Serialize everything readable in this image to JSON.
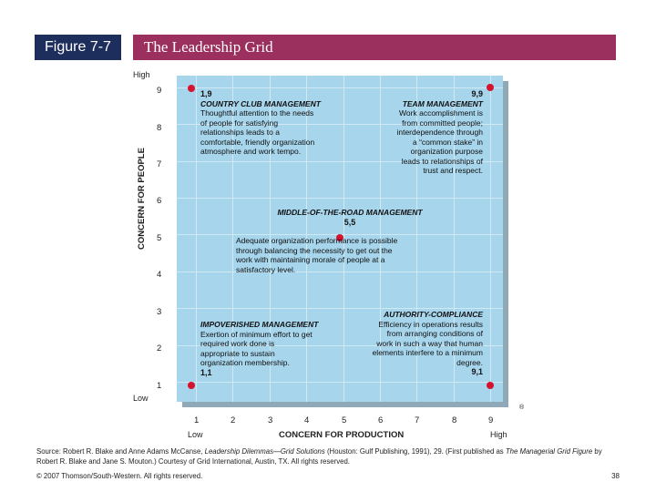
{
  "header": {
    "figure_label": "Figure 7-7",
    "title": "The Leadership Grid"
  },
  "axes": {
    "y_title": "CONCERN FOR PEOPLE",
    "y_high": "High",
    "y_low": "Low",
    "x_title": "CONCERN FOR PRODUCTION",
    "x_low": "Low",
    "x_high": "High",
    "ticks": [
      "1",
      "2",
      "3",
      "4",
      "5",
      "6",
      "7",
      "8",
      "9"
    ]
  },
  "styles": {
    "country_club": {
      "coord": "1,9",
      "title": "COUNTRY CLUB MANAGEMENT",
      "lines": [
        "Thoughtful attention to the needs",
        "of people for satisfying",
        "relationships leads to a",
        "comfortable, friendly organization",
        "atmosphere and work tempo."
      ]
    },
    "team": {
      "coord": "9,9",
      "title": "TEAM MANAGEMENT",
      "lines": [
        "Work accomplishment is",
        "from committed people;",
        "interdependence through",
        "a “common stake” in",
        "organization purpose",
        "leads to relationships of",
        "trust and respect."
      ]
    },
    "middle": {
      "coord": "5,5",
      "title": "MIDDLE-OF-THE-ROAD MANAGEMENT",
      "lines": [
        "Adequate organization performance is possible",
        "through balancing the necessity to get out the",
        "work with maintaining morale of people at a",
        "satisfactory level."
      ]
    },
    "authority": {
      "coord": "9,1",
      "title": "AUTHORITY-COMPLIANCE",
      "lines": [
        "Efficiency in operations results",
        "from arranging conditions of",
        "work in such a way that human",
        "elements interfere to a minimum",
        "degree."
      ]
    },
    "impoverished": {
      "coord": "1,1",
      "title": "IMPOVERISHED MANAGEMENT",
      "lines": [
        "Exertion of minimum effort to get",
        "required work done is",
        "appropriate to sustain",
        "organization membership."
      ]
    }
  },
  "registered_mark": "®",
  "source": {
    "prefix": "Source: Robert R. Blake and Anne Adams McCanse, ",
    "book1": "Leadership Dilemmas—Grid Solutions",
    "middle": " (Houston: Gulf Publishing, 1991), 29. (First published as ",
    "book2": "The Managerial Grid Figure",
    "suffix": " by Robert R. Blake and Jane S. Mouton.) Courtesy of Grid International, Austin, TX. All rights reserved."
  },
  "footer": {
    "copyright": "© 2007 Thomson/South-Western. All rights reserved.",
    "page": "38"
  },
  "colors": {
    "grid_fill": "#a6d5ec",
    "dot": "#d4132f",
    "label_bg": "#1d2d5c",
    "title_bg": "#9b2f5d"
  }
}
